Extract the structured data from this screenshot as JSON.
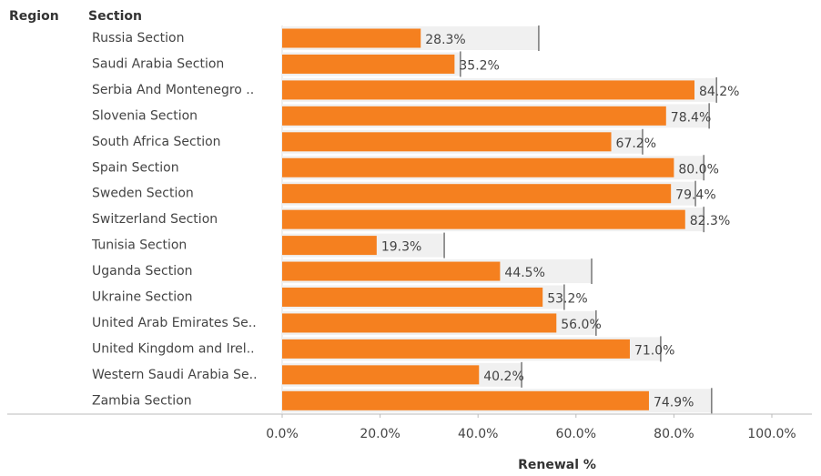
{
  "chart_data": {
    "type": "bullet_bar",
    "column_headers": [
      "Region",
      "Section"
    ],
    "categories": [
      "Russia Section",
      "Saudi Arabia Section",
      "Serbia And Montenegro ..",
      "Slovenia Section",
      "South Africa Section",
      "Spain Section",
      "Sweden Section",
      "Switzerland Section",
      "Tunisia Section",
      "Uganda Section",
      "Ukraine Section",
      "United Arab Emirates Se..",
      "United Kingdom and Irel..",
      "Western Saudi Arabia Se..",
      "Zambia Section"
    ],
    "values": [
      28.3,
      35.2,
      84.2,
      78.4,
      67.2,
      80.0,
      79.4,
      82.3,
      19.3,
      44.5,
      53.2,
      56.0,
      71.0,
      40.2,
      74.9
    ],
    "value_labels": [
      "28.3%",
      "35.2%",
      "84.2%",
      "78.4%",
      "67.2%",
      "80.0%",
      "79.4%",
      "82.3%",
      "19.3%",
      "44.5%",
      "53.2%",
      "56.0%",
      "71.0%",
      "40.2%",
      "74.9%"
    ],
    "reference_values": [
      52.4,
      36.4,
      88.7,
      87.2,
      73.6,
      86.1,
      84.4,
      86.1,
      33.1,
      63.2,
      57.6,
      64.1,
      77.3,
      48.9,
      87.7
    ],
    "color": "#f5801f",
    "band_color": "#f0f0f0",
    "reference_color": "#777777",
    "xlim": [
      0,
      100
    ],
    "xticks": [
      {
        "value": 0,
        "label": "0.0%"
      },
      {
        "value": 20,
        "label": "20.0%"
      },
      {
        "value": 40,
        "label": "40.0%"
      },
      {
        "value": 60,
        "label": "60.0%"
      },
      {
        "value": 80,
        "label": "80.0%"
      },
      {
        "value": 100,
        "label": "100.0%"
      }
    ],
    "x_label": "Renewal %"
  }
}
